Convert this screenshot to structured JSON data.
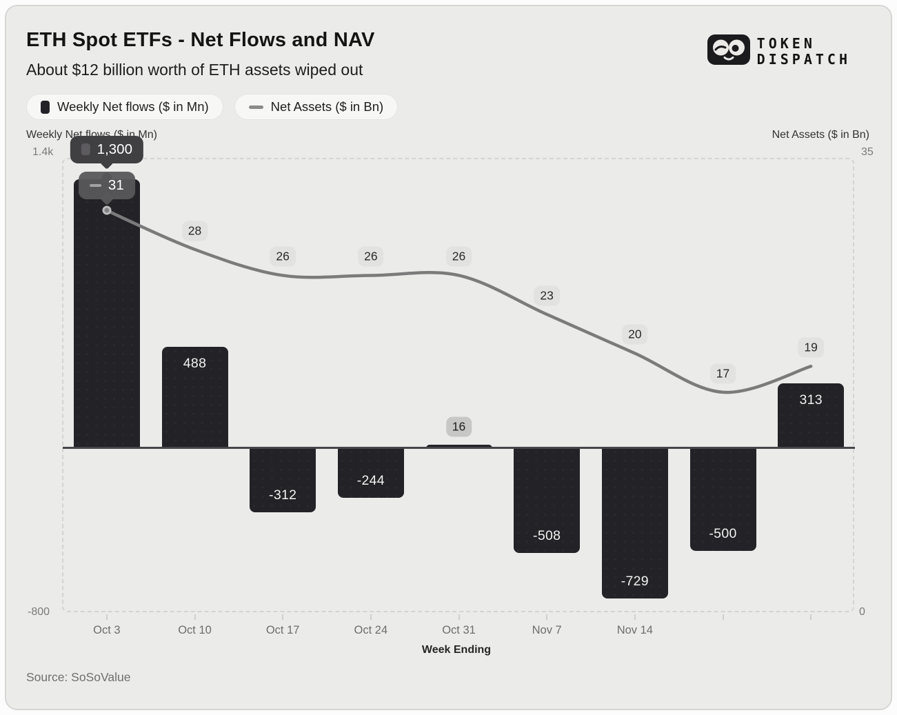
{
  "header": {
    "title": "ETH Spot ETFs - Net Flows and NAV",
    "subtitle": "About $12 billion worth of ETH assets wiped out"
  },
  "logo": {
    "line1": "TOKEN",
    "line2": "DISPATCH"
  },
  "legend": [
    {
      "label": "Weekly Net flows ($ in Mn)",
      "icon": "bar-swatch-icon"
    },
    {
      "label": "Net Assets ($ in Bn)",
      "icon": "line-swatch-icon"
    }
  ],
  "axes": {
    "left": {
      "title": "Weekly Net flows ($ in Mn)",
      "top_tick": "1.4k",
      "bottom_tick": "-800"
    },
    "right": {
      "title": "Net Assets ($ in Bn)",
      "top_tick": "35",
      "bottom_tick": "0"
    },
    "x": {
      "title": "Week Ending",
      "tick_labels": [
        "Oct 3",
        "Oct 10",
        "Oct 17",
        "Oct 24",
        "Oct 31",
        "Nov 7",
        "Nov 14"
      ]
    }
  },
  "tooltip": {
    "bar_label": "1,300",
    "line_label": "31"
  },
  "source": "Source: SoSoValue",
  "colors": {
    "card_bg": "#ebebea",
    "bar": "#232226",
    "line": "#7b7b7b",
    "label_bubble_bg": "#e2e2e1",
    "small_bar_bubble_bg": "#c7c7c6",
    "tooltip_bg": "#403f42",
    "zero_line": "#47454a",
    "dashed_border": "#d3d3d2"
  },
  "chart_data": {
    "type": "combo",
    "categories": [
      "Oct 3",
      "Oct 10",
      "Oct 17",
      "Oct 24",
      "Oct 31",
      "Nov 7",
      "Nov 14",
      "",
      ""
    ],
    "series": [
      {
        "name": "Weekly Net flows ($ in Mn)",
        "type": "bar",
        "axis": "left",
        "values": [
          1300,
          488,
          -312,
          -244,
          16,
          -508,
          -729,
          -500,
          313
        ],
        "value_labels": [
          "1,300",
          "488",
          "-312",
          "-244",
          "16",
          "-508",
          "-729",
          "-500",
          "313"
        ]
      },
      {
        "name": "Net Assets ($ in Bn)",
        "type": "line",
        "axis": "right",
        "values": [
          31,
          28,
          26,
          26,
          26,
          23,
          20,
          17,
          19
        ]
      }
    ],
    "left_axis_range": [
      -800,
      1400
    ],
    "right_axis_range": [
      0,
      35
    ],
    "xlabel": "Week Ending",
    "grid": "dashed plot border only",
    "legend_position": "top-left"
  }
}
